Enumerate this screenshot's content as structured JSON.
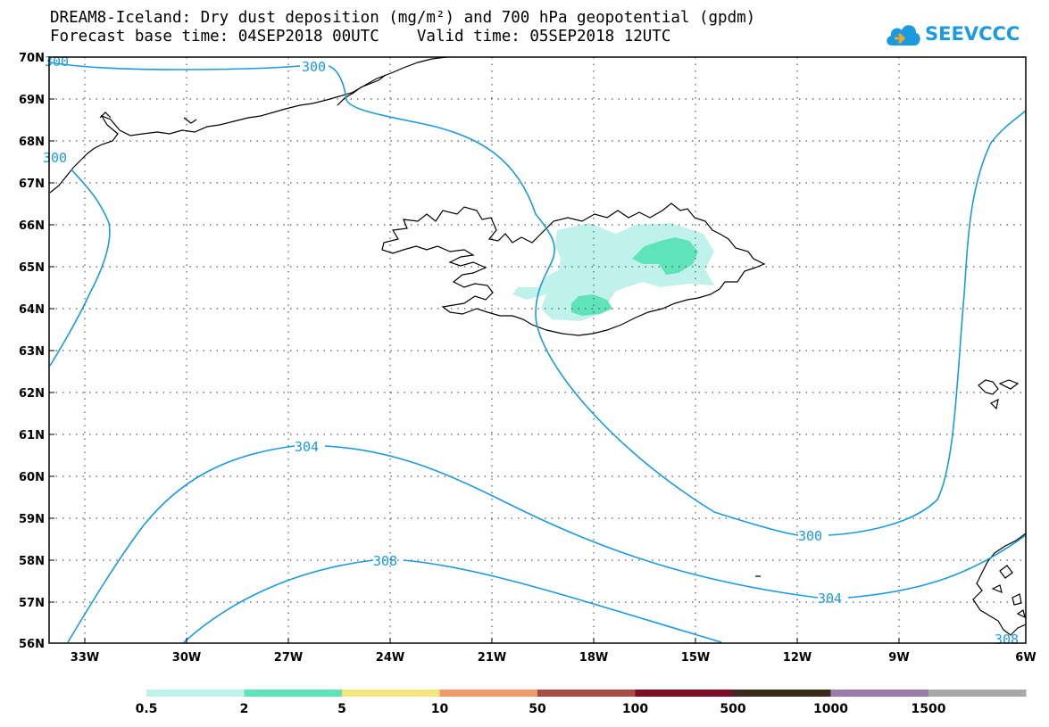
{
  "title": {
    "line1": "DREAM8-Iceland: Dry dust deposition (mg/m²) and 700 hPa geopotential (gpdm)",
    "line2": "Forecast base time: 04SEP2018 00UTC    Valid time: 05SEP2018 12UTC"
  },
  "logo": {
    "text": "SEEVCCC",
    "icon": "cloud-icon"
  },
  "map": {
    "lat_labels": [
      "70N",
      "69N",
      "68N",
      "67N",
      "66N",
      "65N",
      "64N",
      "63N",
      "62N",
      "61N",
      "60N",
      "59N",
      "58N",
      "57N",
      "56N"
    ],
    "lon_labels": [
      "33W",
      "30W",
      "27W",
      "24W",
      "21W",
      "18W",
      "15W",
      "12W",
      "9W",
      "6W"
    ],
    "contour_color": "#1a9be0",
    "contour_labels": [
      "300",
      "300",
      "300",
      "304",
      "304",
      "308",
      "300",
      "308",
      "304"
    ]
  },
  "legend": {
    "colors": [
      "#bff2ea",
      "#5fe3b8",
      "#f6e57c",
      "#f09a6c",
      "#a84c44",
      "#7c0c28",
      "#3c2a1a",
      "#9a7ca8",
      "#a8a8a8"
    ],
    "labels": [
      "0.5",
      "2",
      "5",
      "10",
      "50",
      "100",
      "500",
      "1000",
      "1500"
    ]
  }
}
